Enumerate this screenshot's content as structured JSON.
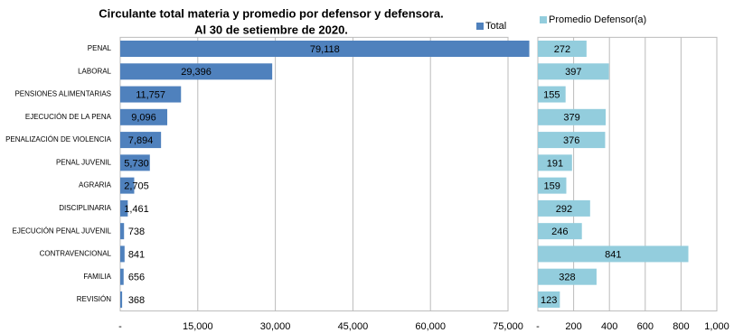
{
  "chart_data": [
    {
      "type": "hbar",
      "title": [
        "Circulante total materia y promedio por defensor y defensora.",
        "Al 30 de  setiembre de 2020."
      ],
      "categories": [
        "PENAL",
        "LABORAL",
        "PENSIONES ALIMENTARIAS",
        "EJECUCIÓN DE LA PENA",
        "PENALIZACIÓN DE VIOLENCIA",
        "PENAL JUVENIL",
        "AGRARIA",
        "DISCIPLINARIA",
        "EJECUCIÓN PENAL JUVENIL",
        "CONTRAVENCIONAL",
        "FAMILIA",
        "REVISIÓN"
      ],
      "series": [
        {
          "name": "Total",
          "color": "#4f81bd",
          "values": [
            79118,
            29396,
            11757,
            9096,
            7894,
            5730,
            2705,
            1461,
            738,
            841,
            656,
            368
          ],
          "value_labels": [
            "79,118",
            "29,396",
            "11,757",
            "9,096",
            "7,894",
            "5,730",
            "2,705",
            "1,461",
            "738",
            "841",
            "656",
            "368"
          ]
        }
      ],
      "xlim": [
        0,
        75000
      ],
      "xticks": [
        {
          "value": 0,
          "label": "-"
        },
        {
          "value": 15000,
          "label": "15,000"
        },
        {
          "value": 30000,
          "label": "30,000"
        },
        {
          "value": 45000,
          "label": "45,000"
        },
        {
          "value": 60000,
          "label": "60,000"
        },
        {
          "value": 75000,
          "label": "75,000"
        }
      ],
      "grid": true
    },
    {
      "type": "hbar",
      "series": [
        {
          "name": "Promedio Defensor(a)",
          "color": "#93cddd",
          "values": [
            272,
            397,
            155,
            379,
            376,
            191,
            159,
            292,
            246,
            841,
            328,
            123
          ]
        }
      ],
      "xlim": [
        0,
        1000
      ],
      "xticks": [
        {
          "value": 0,
          "label": "-"
        },
        200,
        400,
        600,
        800,
        {
          "value": 1000,
          "label": "1,000"
        }
      ],
      "grid": true
    }
  ]
}
